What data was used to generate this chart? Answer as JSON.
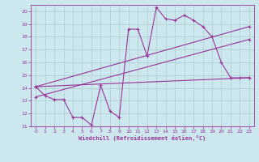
{
  "background_color": "#cce8ee",
  "grid_color": "#aacccc",
  "line_color": "#993399",
  "marker": "+",
  "xlabel": "Windchill (Refroidissement éolien,°C)",
  "xlim": [
    -0.5,
    23.5
  ],
  "ylim": [
    11,
    20.5
  ],
  "yticks": [
    11,
    12,
    13,
    14,
    15,
    16,
    17,
    18,
    19,
    20
  ],
  "xticks": [
    0,
    1,
    2,
    3,
    4,
    5,
    6,
    7,
    8,
    9,
    10,
    11,
    12,
    13,
    14,
    15,
    16,
    17,
    18,
    19,
    20,
    21,
    22,
    23
  ],
  "series1_x": [
    0,
    1,
    2,
    3,
    4,
    5,
    6,
    7,
    8,
    9,
    10,
    11,
    12,
    13,
    14,
    15,
    16,
    17,
    18,
    19,
    20,
    21,
    22,
    23
  ],
  "series1_y": [
    14.1,
    13.4,
    13.1,
    13.1,
    11.7,
    11.7,
    11.1,
    14.2,
    12.2,
    11.7,
    18.6,
    18.6,
    16.5,
    20.3,
    19.4,
    19.3,
    19.7,
    19.3,
    18.8,
    18.0,
    16.0,
    14.8,
    14.8,
    14.8
  ],
  "series2_x": [
    0,
    23
  ],
  "series2_y": [
    14.1,
    14.8
  ],
  "series3_x": [
    0,
    23
  ],
  "series3_y": [
    13.3,
    17.8
  ],
  "series4_x": [
    0,
    23
  ],
  "series4_y": [
    14.1,
    18.8
  ]
}
